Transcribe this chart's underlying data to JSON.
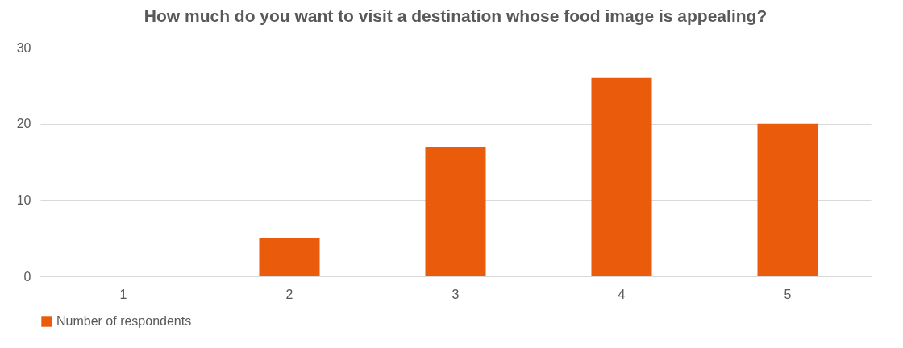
{
  "chart_data": {
    "type": "bar",
    "title": "How much do you want to visit a destination whose food image is appealing?",
    "categories": [
      "1",
      "2",
      "3",
      "4",
      "5"
    ],
    "series": [
      {
        "name": "Number of respondents",
        "color": "#ea5b0c",
        "values": [
          0,
          5,
          17,
          26,
          20
        ]
      }
    ],
    "ylim": [
      0,
      30
    ],
    "yticks": [
      0,
      10,
      20,
      30
    ],
    "grid": "y",
    "legend": "bottom"
  }
}
